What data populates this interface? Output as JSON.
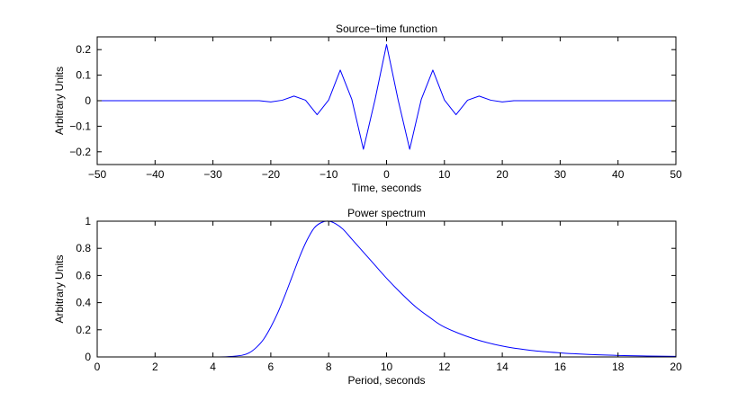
{
  "figure": {
    "background": "#ffffff",
    "line_color": "#0000ff"
  },
  "chart_data": [
    {
      "type": "line",
      "title": "Source−time function",
      "xlabel": "Time, seconds",
      "ylabel": "Arbitrary Units",
      "xlim": [
        -50,
        50
      ],
      "ylim": [
        -0.25,
        0.25
      ],
      "grid": false,
      "x_ticks": [
        -50,
        -40,
        -30,
        -20,
        -10,
        0,
        10,
        20,
        30,
        40,
        50
      ],
      "x_tick_labels": [
        "−50",
        "−40",
        "−30",
        "−20",
        "−10",
        "0",
        "10",
        "20",
        "30",
        "40",
        "50"
      ],
      "y_ticks": [
        -0.2,
        -0.1,
        0,
        0.1,
        0.2
      ],
      "y_tick_labels": [
        "−0.2",
        "−0.1",
        "0",
        "0.1",
        "0.2"
      ],
      "series": [
        {
          "color": "#0000ff",
          "x": [
            -50,
            -24,
            -22,
            -20,
            -18,
            -16,
            -14,
            -12,
            -10,
            -8,
            -6,
            -4,
            -2,
            0,
            2,
            4,
            6,
            8,
            10,
            12,
            14,
            16,
            18,
            20,
            22,
            24,
            50
          ],
          "y": [
            0,
            0,
            0,
            -0.005,
            0.002,
            0.018,
            0.002,
            -0.055,
            0.003,
            0.12,
            0.005,
            -0.19,
            0.003,
            0.22,
            0.003,
            -0.19,
            0.005,
            0.12,
            0.003,
            -0.055,
            0.002,
            0.018,
            0.002,
            -0.005,
            0,
            0,
            0
          ]
        }
      ]
    },
    {
      "type": "line",
      "title": "Power spectrum",
      "xlabel": "Period, seconds",
      "ylabel": "Arbitrary Units",
      "xlim": [
        0,
        20
      ],
      "ylim": [
        0,
        1
      ],
      "grid": false,
      "x_ticks": [
        0,
        2,
        4,
        6,
        8,
        10,
        12,
        14,
        16,
        18,
        20
      ],
      "x_tick_labels": [
        "0",
        "2",
        "4",
        "6",
        "8",
        "10",
        "12",
        "14",
        "16",
        "18",
        "20"
      ],
      "y_ticks": [
        0,
        0.2,
        0.4,
        0.6,
        0.8,
        1
      ],
      "y_tick_labels": [
        "0",
        "0.2",
        "0.4",
        "0.6",
        "0.8",
        "1"
      ],
      "series": [
        {
          "color": "#0000ff",
          "x": [
            4.0,
            4.5,
            5.0,
            5.25,
            5.5,
            5.75,
            6.0,
            6.25,
            6.5,
            6.75,
            7.0,
            7.25,
            7.5,
            7.75,
            8.0,
            8.25,
            8.5,
            8.75,
            9.0,
            9.5,
            10.0,
            10.5,
            11.0,
            11.5,
            12.0,
            13.0,
            14.0,
            15.0,
            16.0,
            17.0,
            18.0,
            19.0,
            20.0
          ],
          "y": [
            0.0,
            0.002,
            0.012,
            0.03,
            0.07,
            0.13,
            0.22,
            0.33,
            0.46,
            0.6,
            0.74,
            0.86,
            0.95,
            0.99,
            1.0,
            0.98,
            0.94,
            0.88,
            0.82,
            0.7,
            0.58,
            0.47,
            0.37,
            0.29,
            0.22,
            0.135,
            0.08,
            0.048,
            0.03,
            0.018,
            0.011,
            0.007,
            0.004
          ]
        }
      ]
    }
  ]
}
